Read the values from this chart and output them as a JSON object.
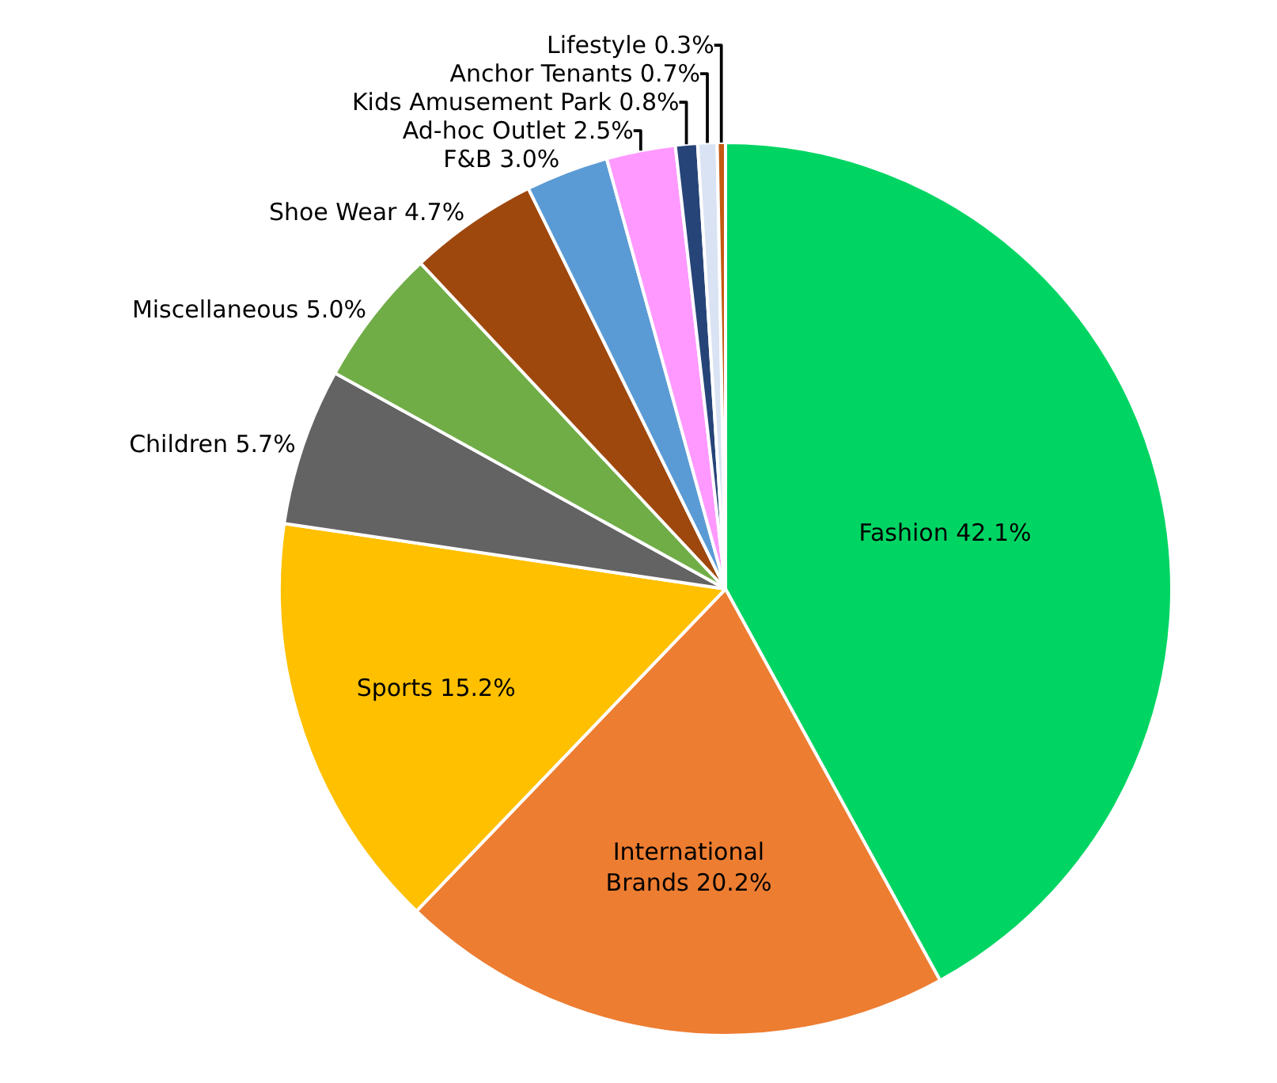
{
  "chart_data": {
    "type": "pie",
    "categories": [
      "Fashion",
      "International\nBrands",
      "Sports",
      "Children",
      "Miscellaneous",
      "Shoe Wear",
      "F&B",
      "Ad-hoc Outlet",
      "Kids Amusement Park",
      "Anchor Tenants",
      "Lifestyle"
    ],
    "values": [
      42.1,
      20.2,
      15.2,
      5.7,
      5.0,
      4.7,
      3.0,
      2.5,
      0.8,
      0.7,
      0.3
    ],
    "colors": [
      "#00d563",
      "#ed7d31",
      "#ffc000",
      "#636363",
      "#70ad47",
      "#9e480e",
      "#5b9bd5",
      "#ff99ff",
      "#264478",
      "#dae3f3",
      "#c55a11"
    ],
    "value_labels": [
      "42.1%",
      "20.2%",
      "15.2%",
      "5.7%",
      "5.0%",
      "4.7%",
      "3.0%",
      "2.5%",
      "0.8%",
      "0.7%",
      "0.3%"
    ],
    "legend": false
  }
}
